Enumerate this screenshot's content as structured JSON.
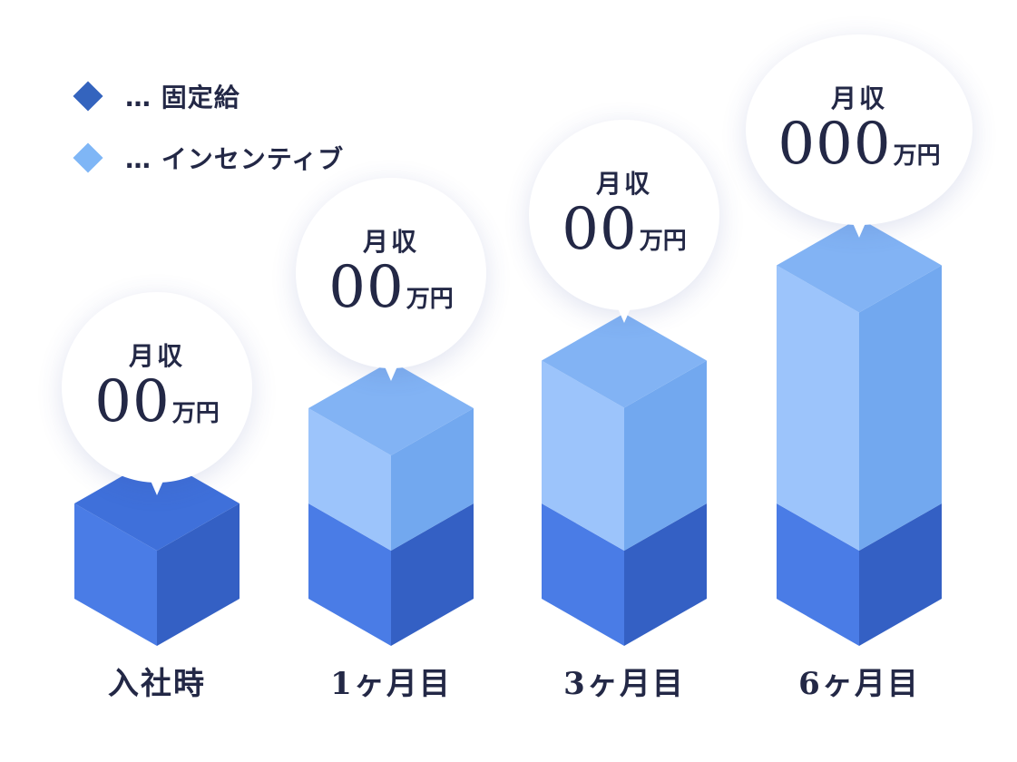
{
  "legend": {
    "fixed_label": "… 固定給",
    "incentive_label": "… インセンティブ"
  },
  "colors": {
    "fixed_front": "#4a7ce6",
    "fixed_side": "#3460c4",
    "fixed_top": "#3f70da",
    "incentive_front": "#9cc4fb",
    "incentive_side": "#72a8ef",
    "incentive_top": "#82b3f4",
    "legend_fixed": "#3464be",
    "legend_incentive": "#7fb6f6"
  },
  "chart_data": {
    "type": "bar",
    "categories": [
      "入社時",
      "1ヶ月目",
      "3ヶ月目",
      "6ヶ月目"
    ],
    "series": [
      {
        "name": "固定給",
        "values": [
          1,
          1,
          1,
          1
        ]
      },
      {
        "name": "インセンティブ",
        "values": [
          0,
          1,
          1.5,
          2.5
        ]
      }
    ],
    "bubbles": [
      {
        "label": "月収",
        "value": "00",
        "unit": "万円"
      },
      {
        "label": "月収",
        "value": "00",
        "unit": "万円"
      },
      {
        "label": "月収",
        "value": "00",
        "unit": "万円"
      },
      {
        "label": "月収",
        "value": "000",
        "unit": "万円"
      }
    ],
    "title": "",
    "xlabel": "",
    "ylabel": "",
    "grid": false,
    "legend_position": "top-left"
  }
}
